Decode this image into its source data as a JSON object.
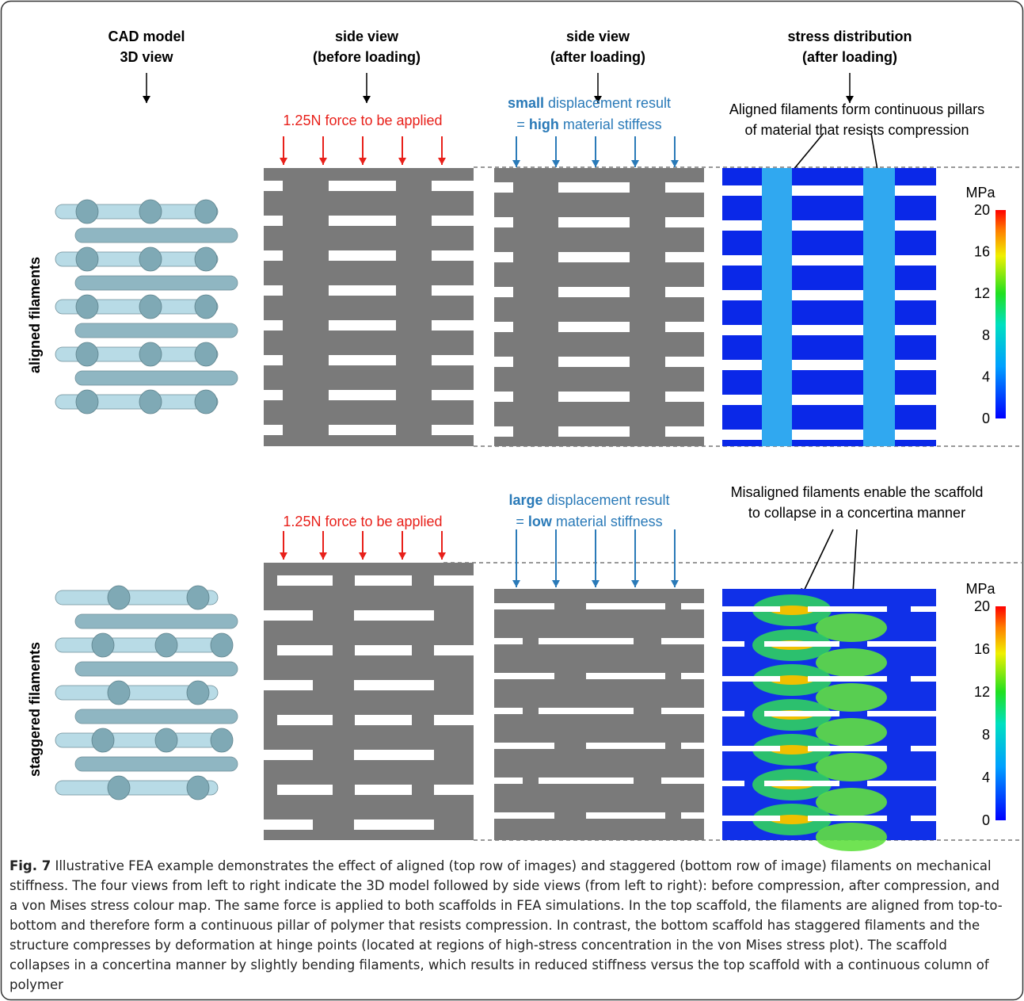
{
  "columns": [
    {
      "line1": "CAD model",
      "line2": "3D view"
    },
    {
      "line1": "side view",
      "line2": "(before loading)"
    },
    {
      "line1": "side view",
      "line2": "(after loading)"
    },
    {
      "line1": "stress distribution",
      "line2": "(after loading)"
    }
  ],
  "rows": [
    {
      "label": "aligned filaments",
      "force_note": "1.25N force to be applied",
      "displacement_note": [
        [
          {
            "text": "small",
            "bold": true
          },
          {
            "text": " displacement result"
          }
        ],
        [
          {
            "text": "= "
          },
          {
            "text": "high",
            "bold": true
          },
          {
            "text": " material stiffess"
          }
        ]
      ],
      "stress_note": [
        "Aligned filaments form continuous pillars",
        "of material that resists compression"
      ]
    },
    {
      "label": "staggered filaments",
      "force_note": "1.25N force to be applied",
      "displacement_note": [
        [
          {
            "text": "large",
            "bold": true
          },
          {
            "text": " displacement result"
          }
        ],
        [
          {
            "text": "= "
          },
          {
            "text": "low",
            "bold": true
          },
          {
            "text": " material stiffness"
          }
        ]
      ],
      "stress_note": [
        "Misaligned filaments enable the scaffold",
        "to collapse in a concertina manner"
      ]
    }
  ],
  "colorbar": {
    "unit": "MPa",
    "ticks": [
      0,
      4,
      8,
      12,
      16,
      20
    ]
  },
  "caption": {
    "label": "Fig. 7",
    "text": " Illustrative FEA example demonstrates the effect of aligned (top row of images) and staggered (bottom row of image) filaments on mechanical stiffness. The four views from left to right indicate the 3D model followed by side views (from left to right): before compression, after compression, and a von Mises stress colour map. The same force is applied to both scaffolds in FEA simulations. In the top scaffold, the filaments are aligned from top-to-bottom and therefore form a continuous pillar of polymer that resists compression. In contrast, the bottom scaffold has staggered filaments and the structure compresses by deformation at hinge points (located at regions of high-stress concentration in the von Mises stress plot). The scaffold collapses in a concertina manner by slightly bending filaments, which results in reduced stiffness versus the top scaffold with a continuous column of polymer"
  }
}
